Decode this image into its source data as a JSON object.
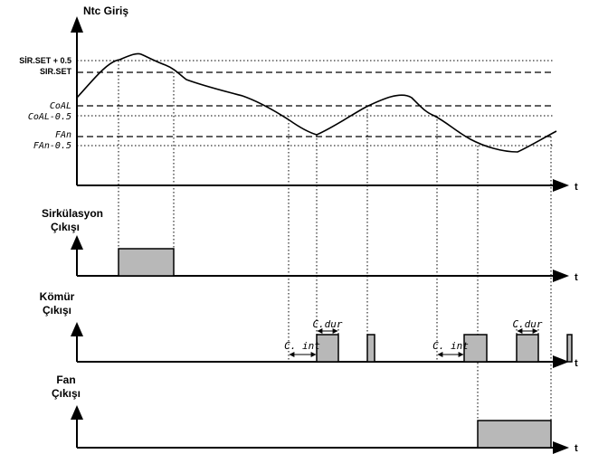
{
  "ntc": {
    "title": "Ntc Giriş",
    "levels": {
      "sir_set_05": "SİR.SET + 0.5",
      "sir_set": "SIR.SET",
      "coal": "CoAL",
      "coal_05": "CoAL-0.5",
      "fan": "FAn",
      "fan_05": "FAn-0.5"
    },
    "t": "t"
  },
  "sirk": {
    "title1": "Sirkülasyon",
    "title2": "Çıkışı",
    "t": "t"
  },
  "komur": {
    "title1": "Kömür",
    "title2": "Çıkışı",
    "t": "t",
    "cdur_1": "C.dur",
    "cdur_2": "C.dur",
    "cint_1": "C. int",
    "cint_2": "C. int"
  },
  "fan": {
    "title1": "Fan",
    "title2": "Çıkışı",
    "t": "t"
  }
}
